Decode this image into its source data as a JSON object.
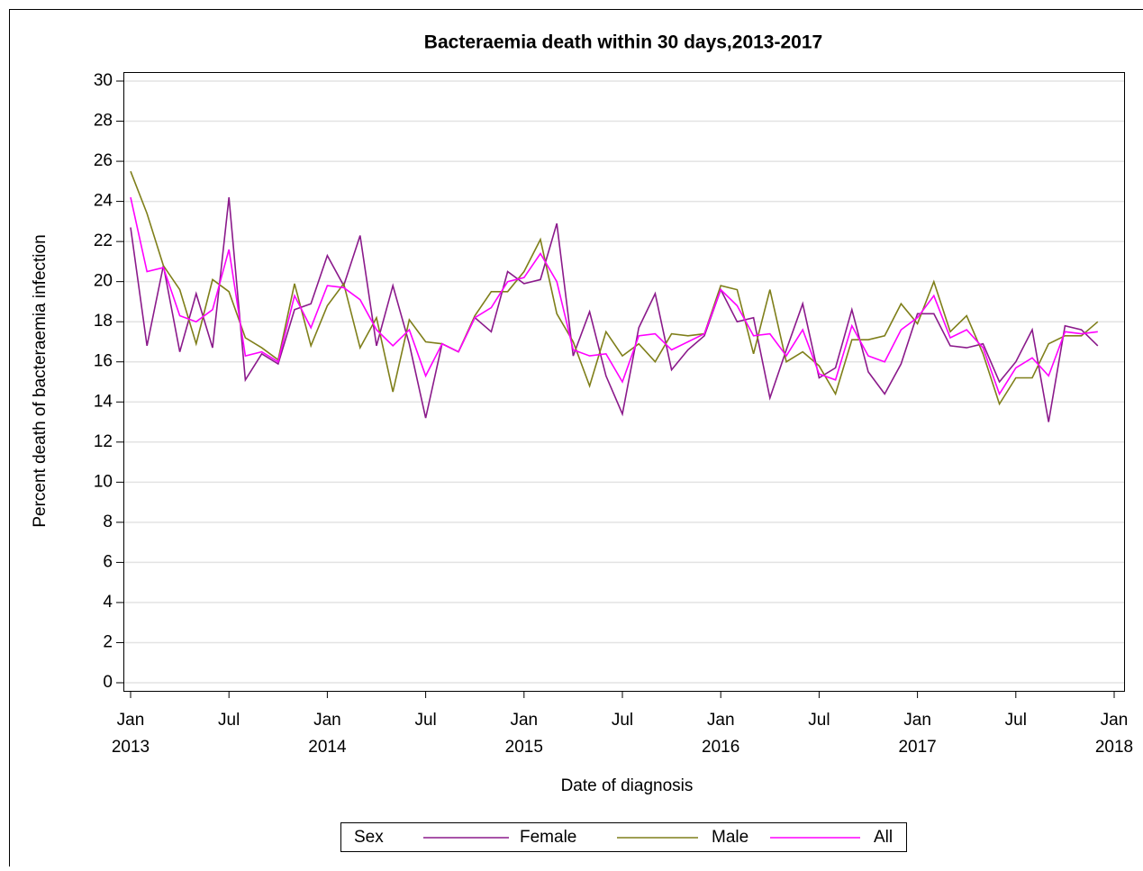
{
  "chart_data": {
    "type": "line",
    "title": "Bacteraemia death within 30 days,2013-2017",
    "x_label": "Date of diagnosis",
    "y_label": "Percent death of bacteraemia infection",
    "legend_title": "Sex",
    "grid": true,
    "x": [
      "2013-01",
      "2013-02",
      "2013-03",
      "2013-04",
      "2013-05",
      "2013-06",
      "2013-07",
      "2013-08",
      "2013-09",
      "2013-10",
      "2013-11",
      "2013-12",
      "2014-01",
      "2014-02",
      "2014-03",
      "2014-04",
      "2014-05",
      "2014-06",
      "2014-07",
      "2014-08",
      "2014-09",
      "2014-10",
      "2014-11",
      "2014-12",
      "2015-01",
      "2015-02",
      "2015-03",
      "2015-04",
      "2015-05",
      "2015-06",
      "2015-07",
      "2015-08",
      "2015-09",
      "2015-10",
      "2015-11",
      "2015-12",
      "2016-01",
      "2016-02",
      "2016-03",
      "2016-04",
      "2016-05",
      "2016-06",
      "2016-07",
      "2016-08",
      "2016-09",
      "2016-10",
      "2016-11",
      "2016-12",
      "2017-01",
      "2017-02",
      "2017-03",
      "2017-04",
      "2017-05",
      "2017-06",
      "2017-07",
      "2017-08",
      "2017-09",
      "2017-10",
      "2017-11",
      "2017-12"
    ],
    "series": [
      {
        "name": "Female",
        "color": "#8b1a8b",
        "values": [
          22.7,
          16.8,
          20.8,
          16.5,
          19.4,
          16.7,
          24.2,
          15.1,
          16.4,
          15.9,
          18.6,
          18.9,
          21.3,
          19.8,
          22.3,
          16.8,
          19.8,
          16.9,
          13.2,
          16.9,
          16.5,
          18.2,
          17.5,
          20.5,
          19.9,
          20.1,
          22.9,
          16.3,
          18.5,
          15.3,
          13.4,
          17.7,
          19.4,
          15.6,
          16.6,
          17.3,
          19.6,
          18.0,
          18.2,
          14.2,
          16.6,
          18.9,
          15.2,
          15.7,
          18.6,
          15.5,
          14.4,
          15.9,
          18.4,
          18.4,
          16.8,
          16.7,
          16.9,
          15.0,
          16.0,
          17.6,
          13.0,
          17.8,
          17.6,
          16.8
        ]
      },
      {
        "name": "Male",
        "color": "#7f7f1a",
        "values": [
          25.5,
          23.4,
          20.8,
          19.6,
          16.9,
          20.1,
          19.5,
          17.2,
          16.7,
          16.1,
          19.9,
          16.8,
          18.8,
          19.9,
          16.7,
          18.2,
          14.5,
          18.1,
          17.0,
          16.9,
          16.5,
          18.3,
          19.5,
          19.5,
          20.5,
          22.1,
          18.4,
          17.0,
          14.8,
          17.5,
          16.3,
          16.9,
          16.0,
          17.4,
          17.3,
          17.4,
          19.8,
          19.6,
          16.4,
          19.6,
          16.0,
          16.5,
          15.8,
          14.4,
          17.1,
          17.1,
          17.3,
          18.9,
          17.9,
          20.0,
          17.5,
          18.3,
          16.4,
          13.9,
          15.2,
          15.2,
          16.9,
          17.3,
          17.3,
          18.0
        ]
      },
      {
        "name": "All",
        "color": "#ff00ff",
        "values": [
          24.2,
          20.5,
          20.7,
          18.3,
          18.0,
          18.6,
          21.6,
          16.3,
          16.5,
          16.0,
          19.3,
          17.7,
          19.8,
          19.7,
          19.1,
          17.6,
          16.8,
          17.6,
          15.3,
          16.9,
          16.5,
          18.2,
          18.7,
          20.0,
          20.2,
          21.4,
          20.0,
          16.6,
          16.3,
          16.4,
          15.0,
          17.3,
          17.4,
          16.6,
          17.0,
          17.4,
          19.6,
          18.8,
          17.3,
          17.4,
          16.3,
          17.6,
          15.4,
          15.1,
          17.8,
          16.3,
          16.0,
          17.6,
          18.2,
          19.3,
          17.2,
          17.6,
          16.7,
          14.4,
          15.7,
          16.2,
          15.3,
          17.5,
          17.4,
          17.5
        ]
      }
    ],
    "xlim": [
      "2013-01",
      "2018-01"
    ],
    "xticks": [
      {
        "value": "2013-01",
        "label": [
          "Jan",
          "2013"
        ]
      },
      {
        "value": "2013-07",
        "label": [
          "Jul"
        ]
      },
      {
        "value": "2014-01",
        "label": [
          "Jan",
          "2014"
        ]
      },
      {
        "value": "2014-07",
        "label": [
          "Jul"
        ]
      },
      {
        "value": "2015-01",
        "label": [
          "Jan",
          "2015"
        ]
      },
      {
        "value": "2015-07",
        "label": [
          "Jul"
        ]
      },
      {
        "value": "2016-01",
        "label": [
          "Jan",
          "2016"
        ]
      },
      {
        "value": "2016-07",
        "label": [
          "Jul"
        ]
      },
      {
        "value": "2017-01",
        "label": [
          "Jan",
          "2017"
        ]
      },
      {
        "value": "2017-07",
        "label": [
          "Jul"
        ]
      },
      {
        "value": "2018-01",
        "label": [
          "Jan",
          "2018"
        ]
      }
    ],
    "ylim": [
      0,
      30
    ],
    "yticks": [
      0,
      2,
      4,
      6,
      8,
      10,
      12,
      14,
      16,
      18,
      20,
      22,
      24,
      26,
      28,
      30
    ]
  }
}
